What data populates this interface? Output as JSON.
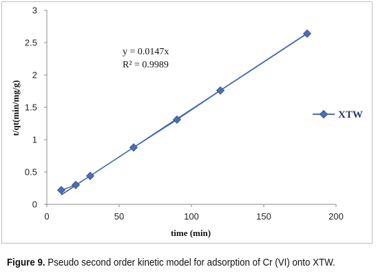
{
  "chart_data": {
    "type": "scatter",
    "title": "",
    "xlabel": "time (min)",
    "ylabel": "t/qt(min/mg/g)",
    "xlim": [
      0,
      200
    ],
    "ylim": [
      0,
      3
    ],
    "xticks": [
      0,
      50,
      100,
      150,
      200
    ],
    "yticks": [
      0,
      0.5,
      1,
      1.5,
      2,
      2.5,
      3
    ],
    "xtick_labels": [
      "0",
      "50",
      "100",
      "150",
      "200"
    ],
    "ytick_labels": [
      "0",
      "0.5",
      "1",
      "1.5",
      "2",
      "2.5",
      "3"
    ],
    "grid": false,
    "legend": "right",
    "series": [
      {
        "name": "XTW",
        "color": "#4a6fb5",
        "marker": "diamond",
        "x": [
          10,
          20,
          30,
          60,
          90,
          120,
          180
        ],
        "y": [
          0.22,
          0.3,
          0.44,
          0.88,
          1.31,
          1.76,
          2.64
        ]
      }
    ],
    "trendline": {
      "slope": 0.0147,
      "x": [
        10,
        180
      ],
      "color": "#1f3b73",
      "equation": "y = 0.0147x",
      "r2": "R² = 0.9989"
    }
  },
  "caption": {
    "label": "Figure 9.",
    "text": " Pseudo second order kinetic model for adsorption of Cr (VI) onto XTW."
  }
}
